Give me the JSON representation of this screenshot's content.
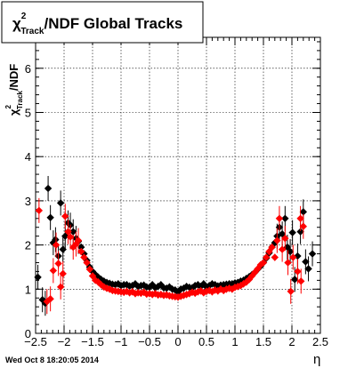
{
  "chart_data": {
    "type": "scatter",
    "title_main": "χ",
    "title_sup": "2",
    "title_sub": "Track",
    "title_rest": "/NDF  Global Tracks",
    "ylabel_main": "χ",
    "ylabel_sup": "2",
    "ylabel_sub": "Track",
    "ylabel_rest": "/NDF",
    "xlabel": "η",
    "xlim": [
      -2.5,
      2.5
    ],
    "ylim": [
      0,
      6.7
    ],
    "x_ticks": [
      -2.5,
      -2,
      -1.5,
      -1,
      -0.5,
      0,
      0.5,
      1,
      1.5,
      2,
      2.5
    ],
    "x_tick_labels": [
      "−2.5",
      "−2",
      "−1.5",
      "−1",
      "−0.5",
      "0",
      "0.5",
      "1",
      "1.5",
      "2",
      "2.5"
    ],
    "y_ticks": [
      0,
      1,
      2,
      3,
      4,
      5,
      6
    ],
    "y_tick_labels": [
      "0",
      "1",
      "2",
      "3",
      "4",
      "5",
      "6"
    ],
    "grid": true,
    "timestamp": "Wed Oct  8 18:20:05 2014",
    "series": [
      {
        "color": "#000000",
        "points": [
          [
            -2.46,
            1.27
          ],
          [
            -2.38,
            0.76
          ],
          [
            -2.33,
            0.68
          ],
          [
            -2.28,
            3.28
          ],
          [
            -2.24,
            2.62
          ],
          [
            -2.19,
            2.05
          ],
          [
            -2.15,
            2.12
          ],
          [
            -2.1,
            1.75
          ],
          [
            -2.06,
            2.95
          ],
          [
            -2.02,
            1.9
          ],
          [
            -1.98,
            2.2
          ],
          [
            -1.93,
            2.5
          ],
          [
            -1.89,
            2.45
          ],
          [
            -1.84,
            2.3
          ],
          [
            -1.79,
            2.15
          ],
          [
            -1.75,
            2.08
          ],
          [
            -1.7,
            1.95
          ],
          [
            -1.65,
            1.8
          ],
          [
            -1.6,
            1.65
          ],
          [
            -1.55,
            1.5
          ],
          [
            -1.5,
            1.4
          ],
          [
            -1.45,
            1.33
          ],
          [
            -1.4,
            1.27
          ],
          [
            -1.35,
            1.22
          ],
          [
            -1.3,
            1.18
          ],
          [
            -1.25,
            1.15
          ],
          [
            -1.2,
            1.13
          ],
          [
            -1.15,
            1.11
          ],
          [
            -1.1,
            1.1
          ],
          [
            -1.05,
            1.12
          ],
          [
            -1.0,
            1.08
          ],
          [
            -0.95,
            1.1
          ],
          [
            -0.9,
            1.1
          ],
          [
            -0.85,
            1.07
          ],
          [
            -0.8,
            1.08
          ],
          [
            -0.75,
            1.12
          ],
          [
            -0.7,
            1.06
          ],
          [
            -0.65,
            1.08
          ],
          [
            -0.6,
            1.09
          ],
          [
            -0.55,
            1.05
          ],
          [
            -0.5,
            1.04
          ],
          [
            -0.45,
            1.1
          ],
          [
            -0.4,
            1.03
          ],
          [
            -0.35,
            1.06
          ],
          [
            -0.3,
            1.1
          ],
          [
            -0.25,
            1.03
          ],
          [
            -0.2,
            1.02
          ],
          [
            -0.15,
            1.05
          ],
          [
            -0.1,
            1.0
          ],
          [
            -0.05,
            0.98
          ],
          [
            0.0,
            0.94
          ],
          [
            0.05,
            1.0
          ],
          [
            0.1,
            1.02
          ],
          [
            0.15,
            1.06
          ],
          [
            0.2,
            1.04
          ],
          [
            0.25,
            1.03
          ],
          [
            0.3,
            1.08
          ],
          [
            0.35,
            1.1
          ],
          [
            0.4,
            1.06
          ],
          [
            0.45,
            1.12
          ],
          [
            0.5,
            1.05
          ],
          [
            0.55,
            1.08
          ],
          [
            0.6,
            1.12
          ],
          [
            0.65,
            1.1
          ],
          [
            0.7,
            1.07
          ],
          [
            0.75,
            1.09
          ],
          [
            0.8,
            1.1
          ],
          [
            0.85,
            1.11
          ],
          [
            0.9,
            1.12
          ],
          [
            0.95,
            1.12
          ],
          [
            1.0,
            1.14
          ],
          [
            1.05,
            1.15
          ],
          [
            1.1,
            1.18
          ],
          [
            1.15,
            1.2
          ],
          [
            1.2,
            1.24
          ],
          [
            1.25,
            1.28
          ],
          [
            1.3,
            1.33
          ],
          [
            1.35,
            1.38
          ],
          [
            1.4,
            1.45
          ],
          [
            1.45,
            1.52
          ],
          [
            1.5,
            1.6
          ],
          [
            1.55,
            1.7
          ],
          [
            1.6,
            1.82
          ],
          [
            1.65,
            1.95
          ],
          [
            1.7,
            2.05
          ],
          [
            1.74,
            2.2
          ],
          [
            1.78,
            2.4
          ],
          [
            1.83,
            2.25
          ],
          [
            1.88,
            2.6
          ],
          [
            1.92,
            1.95
          ],
          [
            1.97,
            1.85
          ],
          [
            2.01,
            2.28
          ],
          [
            2.05,
            1.22
          ],
          [
            2.1,
            1.75
          ],
          [
            2.15,
            2.3
          ],
          [
            2.2,
            2.75
          ],
          [
            2.24,
            1.62
          ],
          [
            2.29,
            1.46
          ],
          [
            2.36,
            1.8
          ]
        ]
      },
      {
        "color": "#ff0000",
        "points": [
          [
            -2.44,
            2.78
          ],
          [
            -2.3,
            0.72
          ],
          [
            -2.24,
            0.78
          ],
          [
            -2.19,
            1.42
          ],
          [
            -2.14,
            2.0
          ],
          [
            -2.1,
            1.58
          ],
          [
            -2.06,
            1.05
          ],
          [
            -2.02,
            1.35
          ],
          [
            -1.98,
            2.65
          ],
          [
            -1.93,
            2.3
          ],
          [
            -1.89,
            2.18
          ],
          [
            -1.84,
            1.95
          ],
          [
            -1.79,
            2.02
          ],
          [
            -1.75,
            2.1
          ],
          [
            -1.7,
            1.85
          ],
          [
            -1.65,
            1.72
          ],
          [
            -1.6,
            1.6
          ],
          [
            -1.55,
            1.45
          ],
          [
            -1.5,
            1.3
          ],
          [
            -1.45,
            1.2
          ],
          [
            -1.4,
            1.16
          ],
          [
            -1.35,
            1.1
          ],
          [
            -1.3,
            1.05
          ],
          [
            -1.25,
            1.02
          ],
          [
            -1.2,
            1.0
          ],
          [
            -1.15,
            0.97
          ],
          [
            -1.1,
            0.96
          ],
          [
            -1.05,
            0.95
          ],
          [
            -1.0,
            0.94
          ],
          [
            -0.95,
            0.93
          ],
          [
            -0.9,
            0.95
          ],
          [
            -0.85,
            0.92
          ],
          [
            -0.8,
            0.94
          ],
          [
            -0.75,
            0.9
          ],
          [
            -0.7,
            0.92
          ],
          [
            -0.65,
            0.91
          ],
          [
            -0.6,
            0.93
          ],
          [
            -0.55,
            0.89
          ],
          [
            -0.5,
            0.9
          ],
          [
            -0.45,
            0.88
          ],
          [
            -0.4,
            0.9
          ],
          [
            -0.35,
            0.87
          ],
          [
            -0.3,
            0.88
          ],
          [
            -0.25,
            0.86
          ],
          [
            -0.2,
            0.87
          ],
          [
            -0.15,
            0.85
          ],
          [
            -0.1,
            0.84
          ],
          [
            -0.05,
            0.83
          ],
          [
            0.0,
            0.82
          ],
          [
            0.05,
            0.84
          ],
          [
            0.1,
            0.86
          ],
          [
            0.15,
            0.88
          ],
          [
            0.2,
            0.9
          ],
          [
            0.25,
            0.93
          ],
          [
            0.3,
            0.91
          ],
          [
            0.35,
            0.94
          ],
          [
            0.4,
            0.96
          ],
          [
            0.45,
            0.92
          ],
          [
            0.5,
            0.95
          ],
          [
            0.55,
            0.97
          ],
          [
            0.6,
            0.94
          ],
          [
            0.65,
            0.98
          ],
          [
            0.7,
            0.96
          ],
          [
            0.75,
            1.0
          ],
          [
            0.8,
            0.97
          ],
          [
            0.85,
            1.0
          ],
          [
            0.9,
            1.02
          ],
          [
            0.95,
            1.0
          ],
          [
            1.0,
            1.04
          ],
          [
            1.05,
            1.06
          ],
          [
            1.1,
            1.08
          ],
          [
            1.15,
            1.12
          ],
          [
            1.2,
            1.16
          ],
          [
            1.25,
            1.22
          ],
          [
            1.3,
            1.3
          ],
          [
            1.35,
            1.38
          ],
          [
            1.4,
            1.46
          ],
          [
            1.45,
            1.55
          ],
          [
            1.5,
            1.6
          ],
          [
            1.55,
            1.72
          ],
          [
            1.6,
            1.85
          ],
          [
            1.65,
            1.95
          ],
          [
            1.7,
            1.72
          ],
          [
            1.74,
            2.1
          ],
          [
            1.78,
            2.6
          ],
          [
            1.83,
            1.9
          ],
          [
            1.88,
            2.15
          ],
          [
            1.93,
            1.6
          ],
          [
            1.98,
            0.95
          ],
          [
            2.02,
            1.72
          ],
          [
            2.1,
            1.4
          ],
          [
            2.15,
            2.6
          ],
          [
            2.2,
            2.42
          ],
          [
            2.16,
            1.18
          ]
        ]
      }
    ]
  }
}
